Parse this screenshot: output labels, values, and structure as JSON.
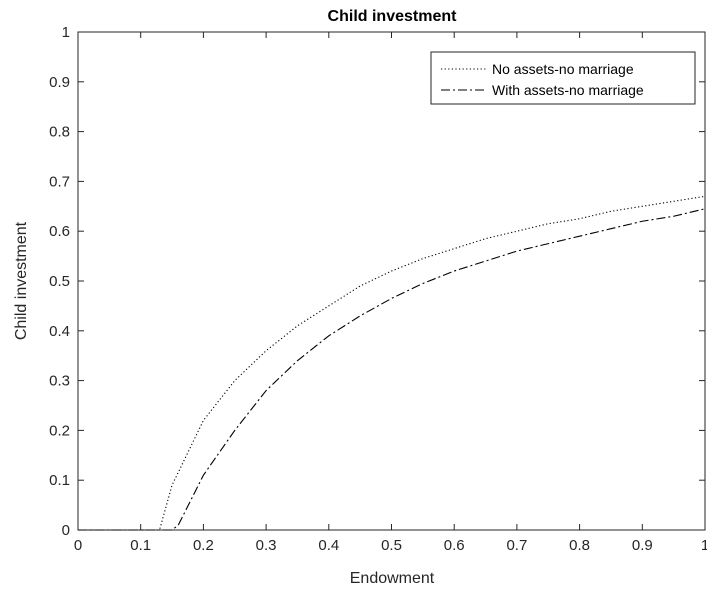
{
  "chart_data": {
    "type": "line",
    "title": "Child investment",
    "xlabel": "Endowment",
    "ylabel": "Child investment",
    "xlim": [
      0,
      1
    ],
    "ylim": [
      0,
      1
    ],
    "xticks": [
      "0",
      "0.1",
      "0.2",
      "0.3",
      "0.4",
      "0.5",
      "0.6",
      "0.7",
      "0.8",
      "0.9",
      "1"
    ],
    "yticks": [
      "0",
      "0.1",
      "0.2",
      "0.3",
      "0.4",
      "0.5",
      "0.6",
      "0.7",
      "0.8",
      "0.9",
      "1"
    ],
    "grid": false,
    "legend_position": "top-right",
    "series": [
      {
        "name": "No assets-no marriage",
        "style": "dotted",
        "color": "#000000",
        "x": [
          0,
          0.1,
          0.13,
          0.15,
          0.2,
          0.25,
          0.3,
          0.35,
          0.4,
          0.45,
          0.5,
          0.55,
          0.6,
          0.65,
          0.7,
          0.75,
          0.8,
          0.85,
          0.9,
          0.95,
          1.0
        ],
        "y": [
          0,
          0,
          0,
          0.09,
          0.22,
          0.3,
          0.36,
          0.41,
          0.45,
          0.49,
          0.52,
          0.545,
          0.565,
          0.585,
          0.6,
          0.615,
          0.625,
          0.64,
          0.65,
          0.66,
          0.67
        ]
      },
      {
        "name": "With assets-no marriage",
        "style": "dashdot",
        "color": "#000000",
        "x": [
          0,
          0.1,
          0.15,
          0.16,
          0.2,
          0.25,
          0.3,
          0.35,
          0.4,
          0.45,
          0.5,
          0.55,
          0.6,
          0.65,
          0.7,
          0.75,
          0.8,
          0.85,
          0.9,
          0.95,
          1.0
        ],
        "y": [
          0,
          0,
          0,
          0.01,
          0.11,
          0.2,
          0.28,
          0.34,
          0.39,
          0.43,
          0.465,
          0.495,
          0.52,
          0.54,
          0.56,
          0.575,
          0.59,
          0.605,
          0.62,
          0.63,
          0.645
        ]
      }
    ]
  }
}
